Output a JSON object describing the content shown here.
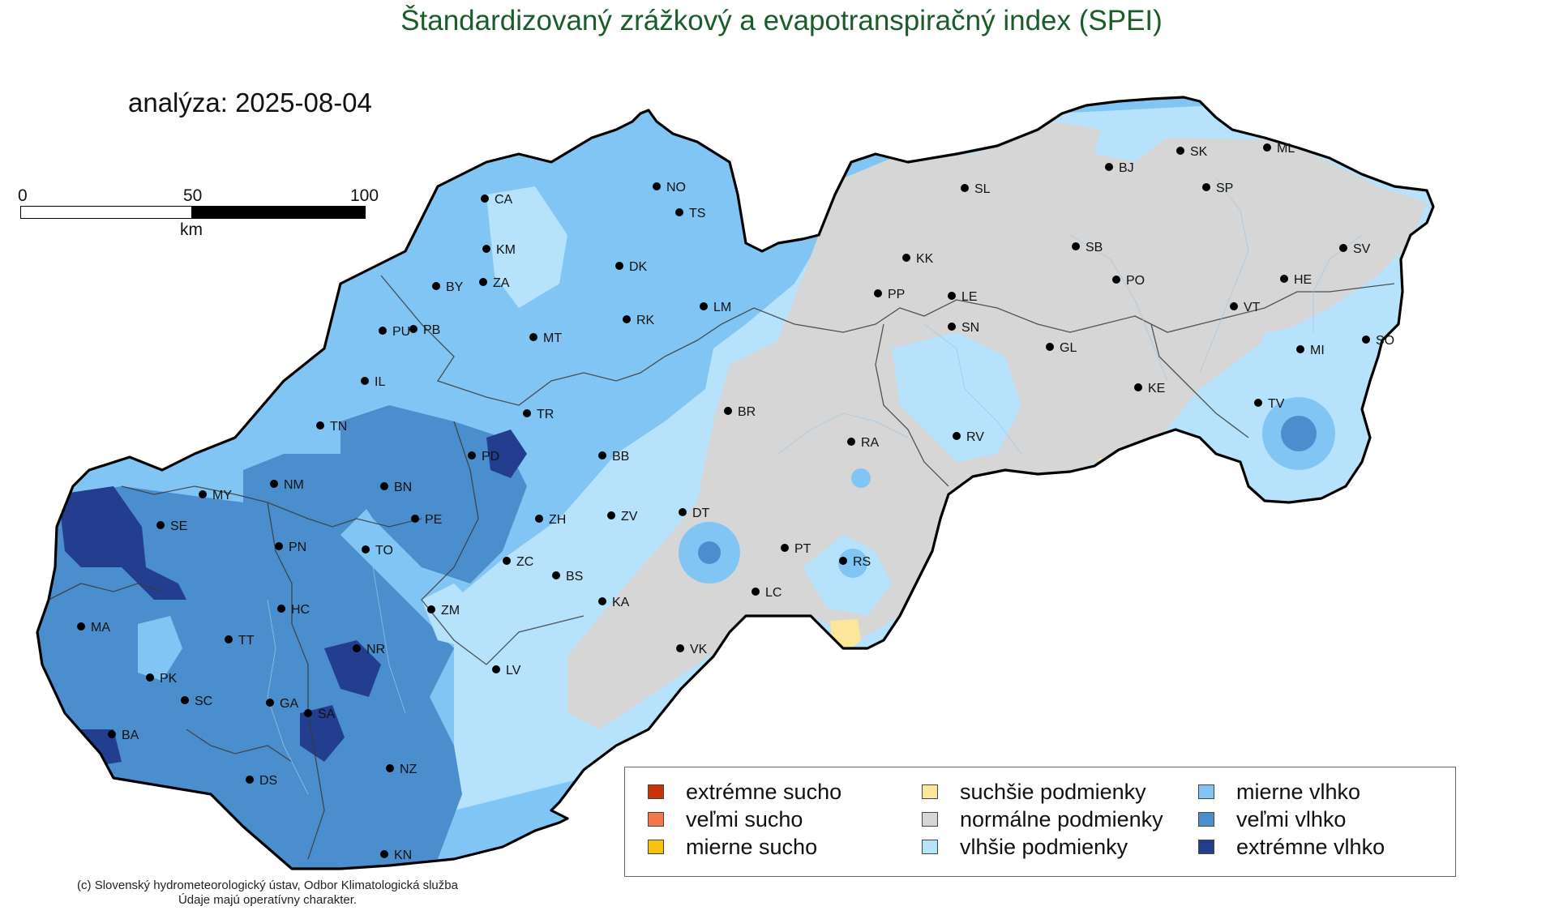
{
  "title": "Štandardizovaný zrážkový a evapotranspiračný index (SPEI)",
  "analysis": "analýza: 2025-08-04",
  "scale": {
    "ticks": [
      "0",
      "50",
      "100"
    ],
    "unit": "km"
  },
  "legend": [
    {
      "label": "extrémne sucho",
      "color": "#c8330a"
    },
    {
      "label": "veľmi sucho",
      "color": "#f4774a"
    },
    {
      "label": "mierne sucho",
      "color": "#f6c20c"
    },
    {
      "label": "suchšie podmienky",
      "color": "#fbe69a"
    },
    {
      "label": "normálne podmienky",
      "color": "#d6d6d6"
    },
    {
      "label": "vlhšie podmienky",
      "color": "#b7e2fb"
    },
    {
      "label": "mierne vlhko",
      "color": "#80c5f3"
    },
    {
      "label": "veľmi vlhko",
      "color": "#4b8ecd"
    },
    {
      "label": "extrémne vlhko",
      "color": "#233d8f"
    }
  ],
  "stations": [
    "CA",
    "NO",
    "TS",
    "KM",
    "ZA",
    "BY",
    "DK",
    "LM",
    "RK",
    "PU",
    "PB",
    "MT",
    "IL",
    "TR",
    "TN",
    "PD",
    "BB",
    "MY",
    "NM",
    "BN",
    "SE",
    "PE",
    "ZH",
    "ZV",
    "DT",
    "PN",
    "TO",
    "ZC",
    "BS",
    "KA",
    "HC",
    "ZM",
    "MA",
    "TT",
    "NR",
    "LV",
    "PK",
    "SC",
    "GA",
    "SA",
    "BA",
    "NZ",
    "DS",
    "KN",
    "VK",
    "LC",
    "PT",
    "RS",
    "RA",
    "BR",
    "RV",
    "SL",
    "BJ",
    "SK",
    "ML",
    "SP",
    "KK",
    "SB",
    "PP",
    "LE",
    "SN",
    "PO",
    "VT",
    "HE",
    "SV",
    "GL",
    "KE",
    "MI",
    "SO",
    "TV"
  ],
  "credit": [
    "(c) Slovenský hydrometeorologický ústav, Odbor Klimatologická služba",
    "Údaje majú operatívny charakter."
  ]
}
